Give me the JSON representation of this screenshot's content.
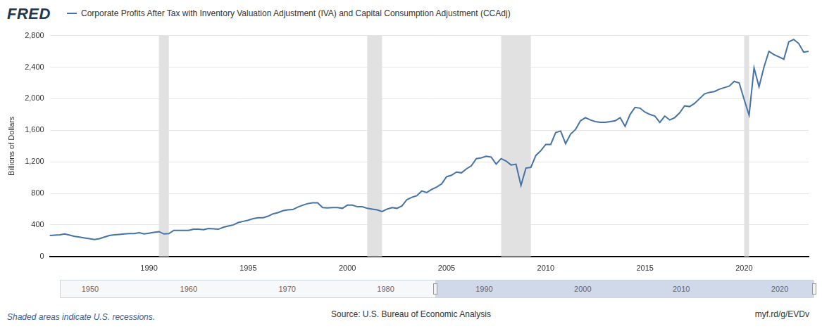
{
  "chart_data": {
    "type": "line",
    "logo": "FRED",
    "title": "Corporate Profits After Tax with Inventory Valuation Adjustment (IVA) and Capital Consumption Adjustment (CCAdj)",
    "y_label": "Billions of Dollars",
    "note": "Shaded areas indicate U.S. recessions.",
    "source": "Source: U.S. Bureau of Economic Analysis",
    "link": "myf.rd/g/EVDv",
    "categories": [
      null,
      null,
      null,
      null,
      null,
      null,
      null,
      null,
      null,
      null,
      null,
      null,
      null,
      null,
      null,
      null,
      null,
      null,
      null,
      null,
      "1990",
      null,
      null,
      null,
      null,
      null,
      null,
      null,
      null,
      null,
      null,
      null,
      null,
      null,
      null,
      null,
      null,
      null,
      null,
      null,
      "1995",
      null,
      null,
      null,
      null,
      null,
      null,
      null,
      null,
      null,
      null,
      null,
      null,
      null,
      null,
      null,
      null,
      null,
      null,
      null,
      "2000",
      null,
      null,
      null,
      null,
      null,
      null,
      null,
      null,
      null,
      null,
      null,
      null,
      null,
      null,
      null,
      null,
      null,
      null,
      null,
      "2005",
      null,
      null,
      null,
      null,
      null,
      null,
      null,
      null,
      null,
      null,
      null,
      null,
      null,
      null,
      null,
      null,
      null,
      null,
      null,
      "2010",
      null,
      null,
      null,
      null,
      null,
      null,
      null,
      null,
      null,
      null,
      null,
      null,
      null,
      null,
      null,
      null,
      null,
      null,
      null,
      "2015",
      null,
      null,
      null,
      null,
      null,
      null,
      null,
      null,
      null,
      null,
      null,
      null,
      null,
      null,
      null,
      null,
      null,
      null,
      null,
      "2020",
      null,
      null,
      null,
      null,
      null,
      null,
      null,
      null,
      null,
      null,
      null,
      null,
      null
    ],
    "series": [
      {
        "name": "Corporate Profits After Tax with Inventory Valuation Adjustment (IVA) and Capital Consumption Adjustment (CCAdj)",
        "color": "#4572a7",
        "values": [
          265,
          270,
          275,
          285,
          270,
          255,
          245,
          235,
          225,
          215,
          225,
          245,
          265,
          275,
          280,
          285,
          290,
          290,
          300,
          285,
          295,
          305,
          315,
          285,
          290,
          330,
          330,
          330,
          330,
          345,
          345,
          340,
          355,
          350,
          345,
          370,
          385,
          400,
          430,
          445,
          460,
          480,
          490,
          490,
          510,
          540,
          555,
          580,
          590,
          595,
          625,
          650,
          670,
          680,
          680,
          620,
          615,
          620,
          620,
          610,
          650,
          650,
          630,
          630,
          610,
          600,
          590,
          570,
          600,
          620,
          610,
          640,
          720,
          750,
          770,
          830,
          810,
          850,
          880,
          920,
          1010,
          1030,
          1070,
          1060,
          1110,
          1150,
          1240,
          1250,
          1270,
          1260,
          1170,
          1240,
          1210,
          1160,
          1170,
          900,
          1120,
          1130,
          1280,
          1340,
          1420,
          1420,
          1570,
          1590,
          1430,
          1550,
          1610,
          1720,
          1760,
          1730,
          1710,
          1700,
          1700,
          1710,
          1720,
          1760,
          1650,
          1800,
          1890,
          1880,
          1830,
          1800,
          1780,
          1700,
          1780,
          1730,
          1760,
          1820,
          1910,
          1900,
          1940,
          2000,
          2060,
          2080,
          2090,
          2120,
          2140,
          2160,
          2220,
          2200,
          1990,
          1790,
          2390,
          2150,
          2400,
          2600,
          2560,
          2530,
          2500,
          2720,
          2750,
          2700,
          2590,
          2600
        ]
      }
    ],
    "recessions": [
      {
        "start": 22,
        "end": 24
      },
      {
        "start": 64,
        "end": 67
      },
      {
        "start": 91,
        "end": 97
      },
      {
        "start": 140,
        "end": 141
      }
    ],
    "ylim": [
      0,
      2800
    ],
    "yticks": [
      0,
      400,
      800,
      {
        "value": 1200,
        "label": "1,200"
      },
      {
        "value": 1600,
        "label": "1,600"
      },
      {
        "value": 2000,
        "label": "2,000"
      },
      {
        "value": 2400,
        "label": "2,400"
      },
      {
        "value": 2800,
        "label": "2,800"
      }
    ],
    "grid": true,
    "navigator": {
      "xlim": [
        1947,
        2023.5
      ],
      "selection": [
        1985,
        2023.5
      ],
      "labels": [
        "1950",
        "1960",
        "1970",
        "1980",
        "1990",
        "2000",
        "2010",
        "2020"
      ]
    }
  }
}
